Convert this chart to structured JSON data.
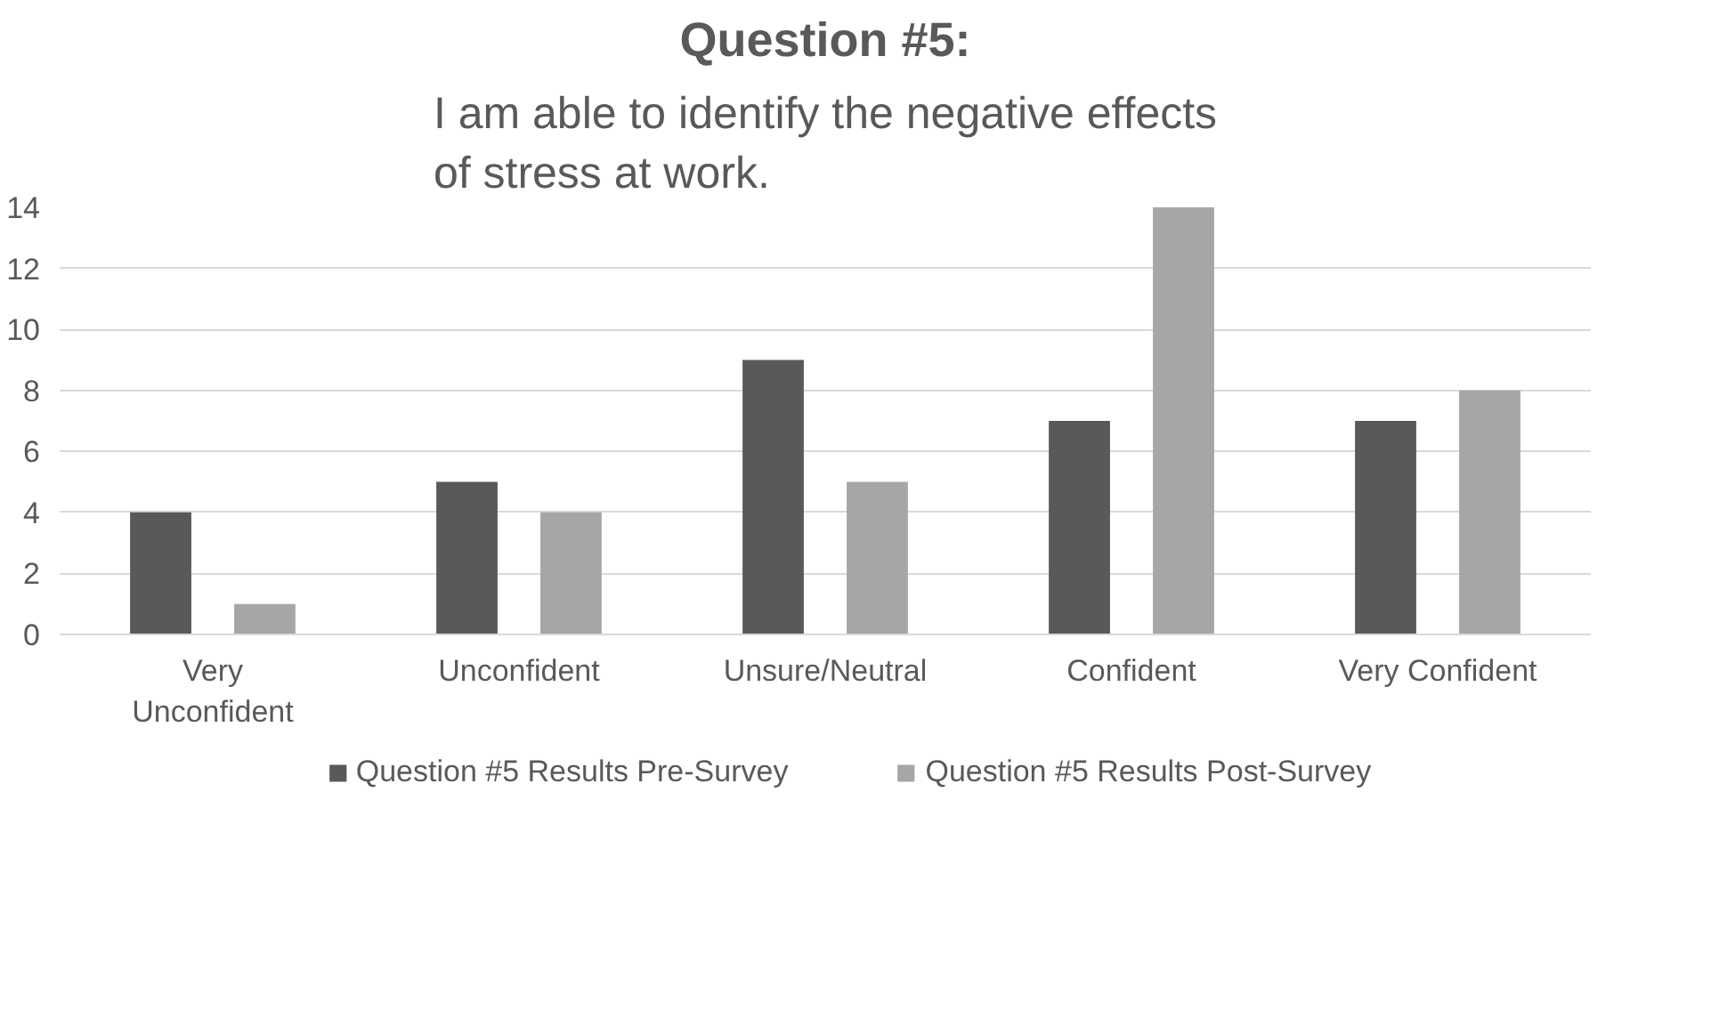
{
  "chart_data": {
    "type": "bar",
    "title": "Question #5:",
    "subtitle": "I am able to identify the negative effects of stress at work.",
    "categories": [
      "Very Unconfident",
      "Unconfident",
      "Unsure/Neutral",
      "Confident",
      "Very Confident"
    ],
    "series": [
      {
        "name": "Question #5 Results Pre-Survey",
        "color": "#595959",
        "values": [
          4,
          5,
          9,
          7,
          7
        ]
      },
      {
        "name": "Question #5 Results Post-Survey",
        "color": "#a6a6a6",
        "values": [
          1,
          4,
          5,
          14,
          8
        ]
      }
    ],
    "ylim": [
      0,
      14
    ],
    "yticks": [
      0,
      2,
      4,
      6,
      8,
      10,
      12,
      14
    ],
    "grid": "y",
    "legend": "bottom"
  }
}
